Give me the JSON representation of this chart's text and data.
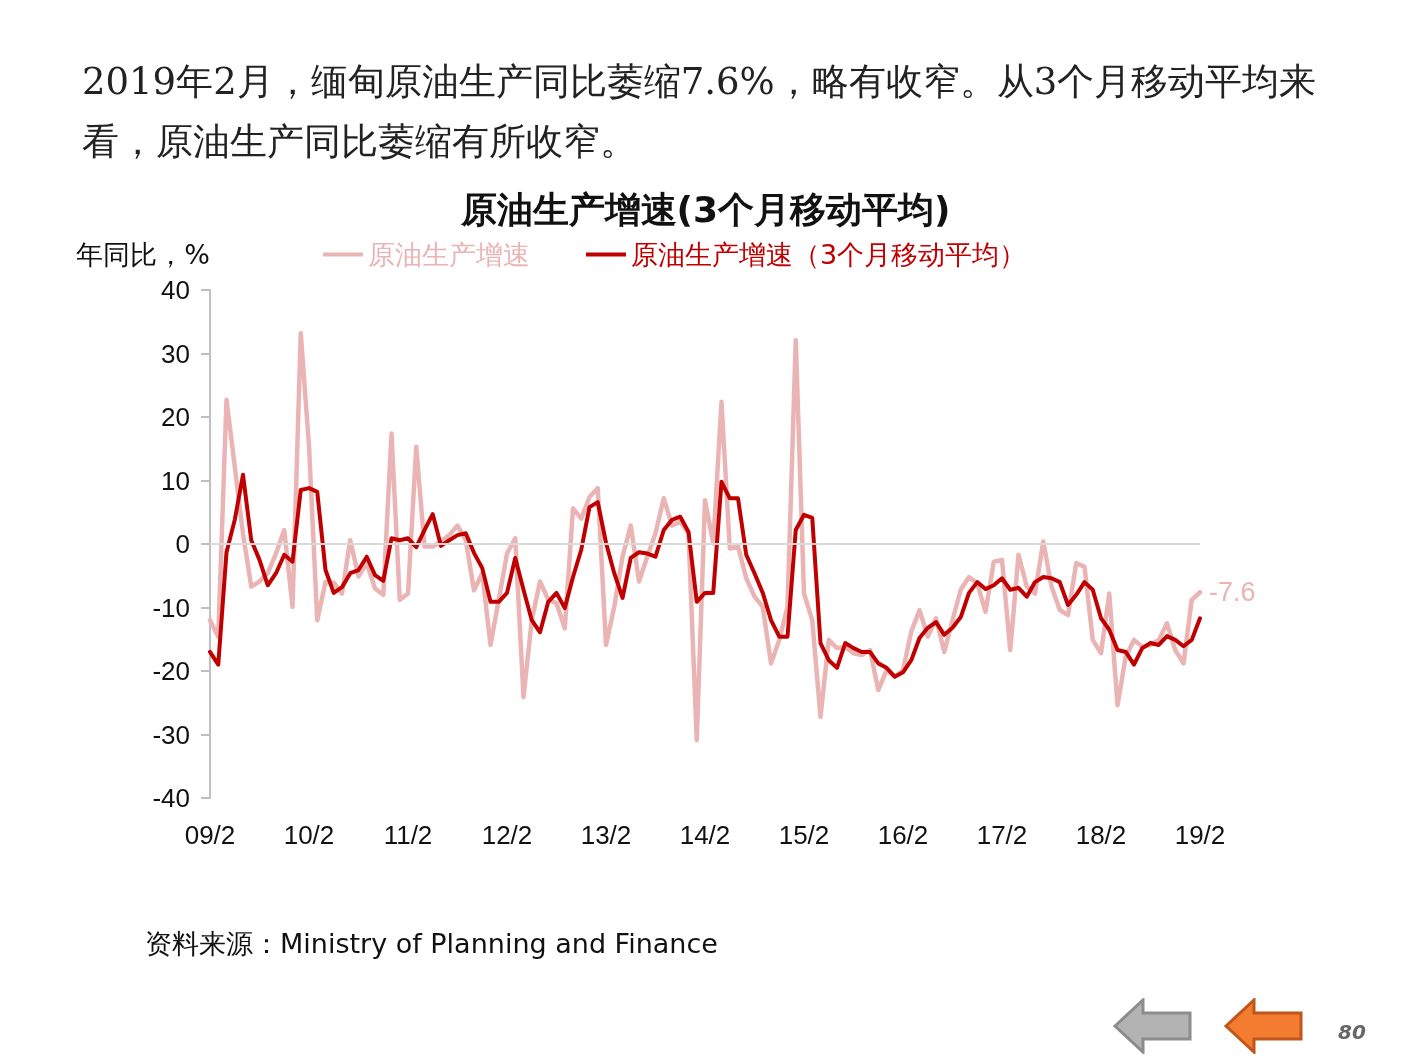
{
  "chart_data": {
    "type": "line",
    "title": "原油生产增速(3个月移动平均)",
    "subtitle": "2019年2月，缅甸原油生产同比萎缩7.6%，略有收窄。从3个月移动平均来看，原油生产同比萎缩有所收窄。",
    "ylabel": "年同比，%",
    "annotations": [
      "资料来源：Ministry of Planning and Finance",
      "80"
    ],
    "categories": [
      "09/2",
      null,
      null,
      null,
      null,
      null,
      null,
      null,
      null,
      null,
      null,
      null,
      "10/2",
      null,
      null,
      null,
      null,
      null,
      null,
      null,
      null,
      null,
      null,
      null,
      "11/2",
      null,
      null,
      null,
      null,
      null,
      null,
      null,
      null,
      null,
      null,
      null,
      "12/2",
      null,
      null,
      null,
      null,
      null,
      null,
      null,
      null,
      null,
      null,
      null,
      "13/2",
      null,
      null,
      null,
      null,
      null,
      null,
      null,
      null,
      null,
      null,
      null,
      "14/2",
      null,
      null,
      null,
      null,
      null,
      null,
      null,
      null,
      null,
      null,
      null,
      "15/2",
      null,
      null,
      null,
      null,
      null,
      null,
      null,
      null,
      null,
      null,
      null,
      "16/2",
      null,
      null,
      null,
      null,
      null,
      null,
      null,
      null,
      null,
      null,
      null,
      "17/2",
      null,
      null,
      null,
      null,
      null,
      null,
      null,
      null,
      null,
      null,
      null,
      "18/2",
      null,
      null,
      null,
      null,
      null,
      null,
      null,
      null,
      null,
      null,
      null,
      "19/2"
    ],
    "series": [
      {
        "name": "原油生产增速",
        "color": "#ebb4b4",
        "values": [
          -12,
          -14.6,
          22.7,
          12.2,
          1.6,
          -6.7,
          -5.9,
          -4.6,
          -1.5,
          2.2,
          -9.9,
          33.2,
          15.4,
          -12,
          -6,
          -6.1,
          -7.8,
          0.6,
          -5.1,
          -3,
          -7,
          -8,
          17.4,
          -8.8,
          -7.8,
          15.3,
          -0.4,
          -0.4,
          0.4,
          1.4,
          2.9,
          0.6,
          -7.3,
          -4.6,
          -15.9,
          -8.8,
          -1.5,
          0.9,
          -24.1,
          -12,
          -5.9,
          -8.8,
          -9.3,
          -13.3,
          5.6,
          4,
          7.4,
          8.8,
          -15.9,
          -9.9,
          -2,
          2.9,
          -5.9,
          -2,
          1.7,
          7.2,
          2.9,
          3.5,
          1.7,
          -30.9,
          6.9,
          0.1,
          22.4,
          -0.7,
          -0.4,
          -5.4,
          -8.3,
          -9.9,
          -18.8,
          -15.1,
          -9.9,
          32.1,
          -7.8,
          -12,
          -27.2,
          -15.1,
          -16.4,
          -16.2,
          -17.2,
          -17.5,
          -16.7,
          -23,
          -19.9,
          -20.9,
          -19.9,
          -13.8,
          -10.4,
          -14.6,
          -11.7,
          -17,
          -12,
          -7.2,
          -5.2,
          -6.2,
          -10.7,
          -2.8,
          -2.5,
          -16.7,
          -1.7,
          -6.7,
          -7.8,
          0.4,
          -6.7,
          -10.4,
          -11.2,
          -3,
          -3.6,
          -15.1,
          -17.2,
          -7.8,
          -25.4,
          -17.7,
          -15.1,
          -16.2,
          -15.9,
          -15.1,
          -12.5,
          -16.7,
          -18.8,
          -8.8,
          -7.6
        ],
        "value_labels": [
          null,
          null,
          null,
          null,
          null,
          null,
          null,
          null,
          null,
          null,
          null,
          null,
          null,
          null,
          null,
          null,
          null,
          null,
          null,
          null,
          null,
          null,
          null,
          null,
          null,
          null,
          null,
          null,
          null,
          null,
          null,
          null,
          null,
          null,
          null,
          null,
          null,
          null,
          null,
          null,
          null,
          null,
          null,
          null,
          null,
          null,
          null,
          null,
          null,
          null,
          null,
          null,
          null,
          null,
          null,
          null,
          null,
          null,
          null,
          null,
          null,
          null,
          null,
          null,
          null,
          null,
          null,
          null,
          null,
          null,
          null,
          null,
          null,
          null,
          null,
          null,
          null,
          null,
          null,
          null,
          null,
          null,
          null,
          null,
          null,
          null,
          null,
          null,
          null,
          null,
          null,
          null,
          null,
          null,
          null,
          null,
          null,
          null,
          null,
          null,
          null,
          null,
          null,
          null,
          null,
          null,
          null,
          null,
          null,
          null,
          null,
          null,
          null,
          null,
          null,
          null,
          null,
          null,
          null,
          null,
          "-7.6"
        ]
      },
      {
        "name": "原油生产增速（3个月移动平均）",
        "color": "#c00000",
        "values": [
          -17,
          -19,
          -1.3,
          3.8,
          10.9,
          0.6,
          -2.5,
          -6.5,
          -4.6,
          -1.7,
          -2.8,
          8.5,
          8.8,
          8.2,
          -4.1,
          -7.7,
          -6.8,
          -4.6,
          -4.1,
          -2,
          -4.9,
          -5.8,
          0.9,
          0.6,
          0.9,
          -0.5,
          2.2,
          4.7,
          -0.3,
          0.6,
          1.4,
          1.7,
          -1.4,
          -3.8,
          -9.1,
          -9.1,
          -7.7,
          -2.2,
          -7.2,
          -12,
          -13.9,
          -9.1,
          -7.7,
          -10.1,
          -5.2,
          -0.9,
          5.8,
          6.6,
          0.2,
          -4.6,
          -8.5,
          -2.2,
          -1.3,
          -1.5,
          -2,
          2.2,
          3.8,
          4.3,
          1.9,
          -9.1,
          -7.7,
          -7.7,
          9.8,
          7.2,
          7.2,
          -1.7,
          -4.6,
          -7.7,
          -12,
          -14.6,
          -14.6,
          2.2,
          4.6,
          4.1,
          -15.6,
          -18.3,
          -19.5,
          -15.6,
          -16.4,
          -17,
          -17,
          -18.8,
          -19.5,
          -20.9,
          -20.2,
          -18.3,
          -14.8,
          -13.2,
          -12.3,
          -14.3,
          -13.2,
          -11.5,
          -7.7,
          -6,
          -7.1,
          -6.5,
          -5.4,
          -7.2,
          -6.9,
          -8.3,
          -6,
          -5.2,
          -5.4,
          -6,
          -9.6,
          -8,
          -6,
          -7.2,
          -11.7,
          -13.5,
          -16.7,
          -17,
          -19,
          -16.4,
          -15.6,
          -15.9,
          -14.5,
          -15.1,
          -16.1,
          -15.1,
          -11.7
        ]
      }
    ],
    "ylim": [
      -40,
      40
    ],
    "yticks": [
      -40,
      -30,
      -20,
      -10,
      0,
      10,
      20,
      30,
      40
    ],
    "ref_lines": [
      {
        "axis": "y",
        "value": 0,
        "color": "#d9d9d9"
      }
    ],
    "grid": false,
    "legend": "top",
    "marker": "none",
    "line_style": "solid"
  }
}
